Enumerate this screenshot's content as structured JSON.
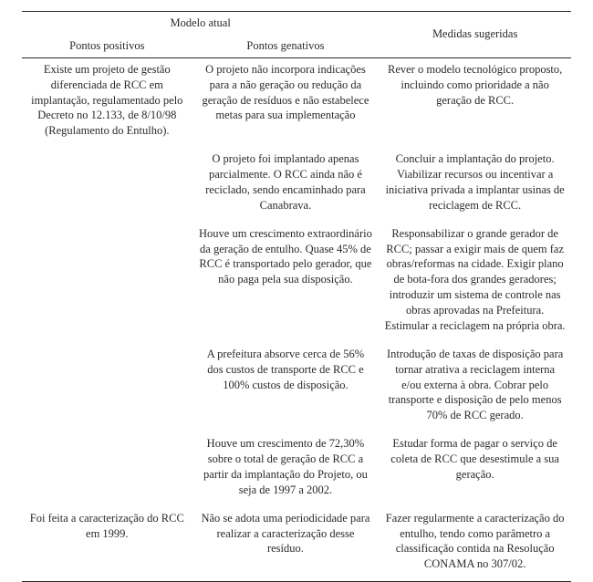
{
  "table": {
    "type": "table",
    "background_color": "#ffffff",
    "text_color": "#2a2a2a",
    "rule_color": "#2a2a2a",
    "font_family": "Georgia, serif",
    "font_size_pt": 10,
    "columns": [
      {
        "key": "positivos",
        "width_pct": 31,
        "align": "center"
      },
      {
        "key": "genativos",
        "width_pct": 34,
        "align": "center"
      },
      {
        "key": "medidas",
        "width_pct": 35,
        "align": "center"
      }
    ],
    "header": {
      "row1": {
        "col12": "Modelo atual",
        "col3": "Medidas sugeridas"
      },
      "row2": {
        "col1": "Pontos positivos",
        "col2": "Pontos genativos"
      }
    },
    "rows": [
      {
        "positivos": "Existe um projeto de gestão diferenciada de RCC em implantação, regulamentado pelo Decreto no 12.133, de 8/10/98 (Regulamento do Entulho).",
        "genativos": "O projeto não incorpora indicações para a não geração ou redução da geração de resíduos e não estabelece metas para sua implementação",
        "medidas": "Rever o modelo tecnológico proposto, incluindo como prioridade a não geração de RCC."
      },
      {
        "positivos": "",
        "genativos": "O projeto foi implantado apenas parcialmente. O RCC ainda não é reciclado, sendo encaminhado para Canabrava.",
        "medidas": "Concluir a implantação do projeto. Viabilizar recursos ou incentivar a iniciativa privada a implantar usinas de reciclagem de RCC."
      },
      {
        "positivos": "",
        "genativos": "Houve um crescimento extraordinário da geração de entulho. Quase 45% de RCC é transportado pelo gerador, que não paga pela sua disposição.",
        "medidas": "Responsabilizar o grande gerador de RCC; passar a exigir mais de quem faz obras/reformas na cidade. Exigir plano de bota-fora dos grandes geradores; introduzir um sistema de controle nas obras aprovadas na Prefeitura. Estimular a reciclagem na própria obra."
      },
      {
        "positivos": "",
        "genativos": "A prefeitura absorve cerca de 56% dos custos de transporte de RCC e 100% custos de disposição.",
        "medidas": "Introdução de taxas de disposição para tornar atrativa a reciclagem interna e/ou externa à obra. Cobrar pelo transporte e disposição de pelo menos 70% de RCC gerado."
      },
      {
        "positivos": "",
        "genativos": "Houve um crescimento de 72,30% sobre o total de geração de RCC a partir da implantação do Projeto, ou seja de 1997 a 2002.",
        "medidas": "Estudar forma de pagar o serviço de coleta de RCC que desestimule a sua geração."
      },
      {
        "positivos": "Foi feita a caracterização do RCC em 1999.",
        "genativos": "Não se adota uma periodicidade para realizar a caracterização desse resíduo.",
        "medidas": "Fazer regularmente a caracterização do entulho, tendo como parâmetro a classificação contida na Resolução CONAMA no 307/02."
      }
    ]
  }
}
